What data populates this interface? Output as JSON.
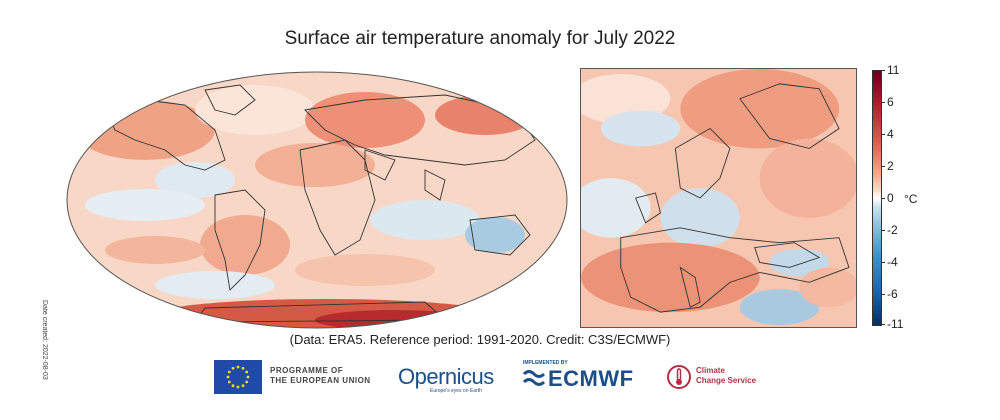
{
  "title": "Surface air temperature anomaly for July 2022",
  "side_label": "Date created: 2022-08-03",
  "colorbar": {
    "unit": "°C",
    "ticks": [
      "11",
      "6",
      "4",
      "2",
      "0",
      "-2",
      "-4",
      "-6",
      "-11"
    ],
    "colors": [
      "#67001f",
      "#b2182b",
      "#d6604d",
      "#f4a582",
      "#ffffff",
      "#92c5de",
      "#4393c3",
      "#2166ac",
      "#053061"
    ]
  },
  "credit": "(Data: ERA5.  Reference period: 1991-2020.  Credit: C3S/ECMWF)",
  "logos": {
    "eu_line1": "PROGRAMME OF",
    "eu_line2": "THE EUROPEAN UNION",
    "copernicus": "Opernicus",
    "copernicus_sub": "Europe's eyes on Earth",
    "implemented_by": "IMPLEMENTED BY",
    "ecmwf": "ECMWF",
    "c3s_line1": "Climate",
    "c3s_line2": "Change Service"
  }
}
